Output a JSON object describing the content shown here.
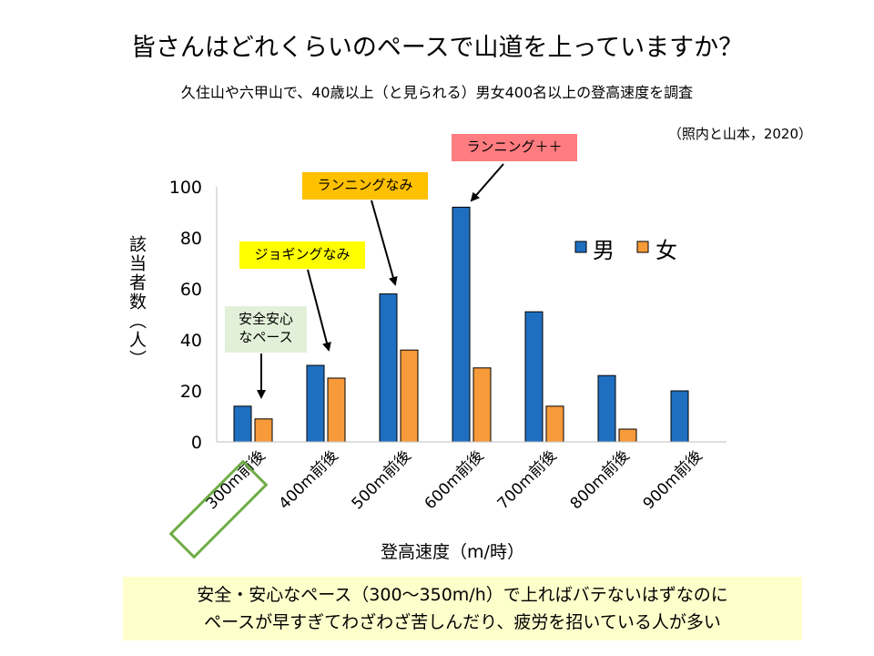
{
  "title": "皆さんはどれくらいのペースで山道を上っていますか？",
  "subtitle": "久住山や六甲山で、40歳以上（と見られる）男女400名以上の登高速度を調査",
  "citation": "（照内と山本，2020）",
  "callouts": {
    "safe_line1": "安全安心",
    "safe_line2": "なペース",
    "jogging": "ジョギングなみ",
    "running": "ランニングなみ",
    "running_plus": "ランニング＋＋"
  },
  "footer": {
    "line1": "安全・安心なペース（300〜350m/h）で上ればバテないはずなのに",
    "line2": "ペースが早すぎてわざわざ苦しんだり、疲労を招いている人が多い"
  },
  "colors": {
    "male": "#1f6fc0",
    "female": "#f79a3a",
    "highlight_border": "#70ad47"
  },
  "chart_data": {
    "type": "bar",
    "xlabel": "登高速度（m/時）",
    "ylabel": "該当者数（人）",
    "categories": [
      "300m前後",
      "400m前後",
      "500m前後",
      "600m前後",
      "700m前後",
      "800m前後",
      "900m前後"
    ],
    "series": [
      {
        "name": "男",
        "values": [
          14,
          30,
          58,
          92,
          51,
          26,
          20
        ]
      },
      {
        "name": "女",
        "values": [
          9,
          25,
          36,
          29,
          14,
          5,
          null
        ]
      }
    ],
    "ylim": [
      0,
      100
    ],
    "yticks": [
      0,
      20,
      40,
      60,
      80,
      100
    ],
    "legend": "top-right",
    "grid": false
  }
}
